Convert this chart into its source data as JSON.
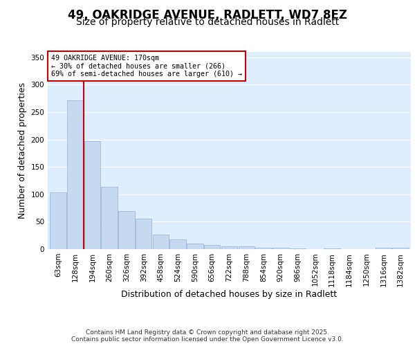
{
  "title": "49, OAKRIDGE AVENUE, RADLETT, WD7 8EZ",
  "subtitle": "Size of property relative to detached houses in Radlett",
  "xlabel": "Distribution of detached houses by size in Radlett",
  "ylabel": "Number of detached properties",
  "categories": [
    "63sqm",
    "128sqm",
    "194sqm",
    "260sqm",
    "326sqm",
    "392sqm",
    "458sqm",
    "524sqm",
    "590sqm",
    "656sqm",
    "722sqm",
    "788sqm",
    "854sqm",
    "920sqm",
    "986sqm",
    "1052sqm",
    "1118sqm",
    "1184sqm",
    "1250sqm",
    "1316sqm",
    "1382sqm"
  ],
  "values": [
    103,
    272,
    197,
    114,
    69,
    56,
    27,
    18,
    10,
    7,
    5,
    5,
    2,
    2,
    1,
    0,
    1,
    0,
    0,
    3,
    2
  ],
  "bar_color": "#c5d9f1",
  "bar_edge_color": "#9ab8d8",
  "vline_x": 1.5,
  "vline_color": "#cc0000",
  "annotation_text": "49 OAKRIDGE AVENUE: 170sqm\n← 30% of detached houses are smaller (266)\n69% of semi-detached houses are larger (610) →",
  "annotation_box_color": "#ffffff",
  "annotation_box_edge": "#cc0000",
  "ylim": [
    0,
    360
  ],
  "yticks": [
    0,
    50,
    100,
    150,
    200,
    250,
    300,
    350
  ],
  "background_color": "#ddeeff",
  "grid_color": "#ffffff",
  "footer": "Contains HM Land Registry data © Crown copyright and database right 2025.\nContains public sector information licensed under the Open Government Licence v3.0.",
  "title_fontsize": 12,
  "subtitle_fontsize": 10,
  "tick_fontsize": 7.5,
  "label_fontsize": 9,
  "fig_bg": "#ffffff"
}
